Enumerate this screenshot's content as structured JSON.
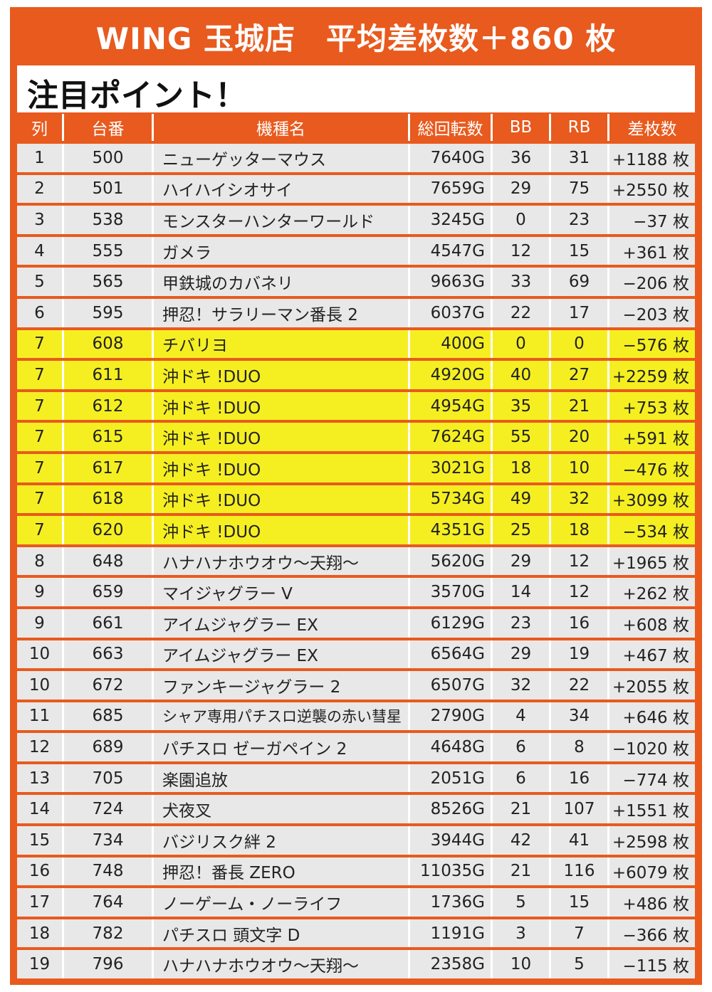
{
  "header": {
    "title": "WING 玉城店　平均差枚数＋860 枚",
    "subtitle": "注目ポイント！"
  },
  "table": {
    "columns": [
      "列",
      "台番",
      "機種名",
      "総回転数",
      "BB",
      "RB",
      "差枚数"
    ],
    "rows": [
      {
        "col": "1",
        "num": "500",
        "name": "ニューゲッターマウス",
        "spins": "7640G",
        "bb": "36",
        "rb": "31",
        "diff": "+1188 枚",
        "highlight": false
      },
      {
        "col": "2",
        "num": "501",
        "name": "ハイハイシオサイ",
        "spins": "7659G",
        "bb": "29",
        "rb": "75",
        "diff": "+2550 枚",
        "highlight": false
      },
      {
        "col": "3",
        "num": "538",
        "name": "モンスターハンターワールド",
        "spins": "3245G",
        "bb": "0",
        "rb": "23",
        "diff": "−37 枚",
        "highlight": false
      },
      {
        "col": "4",
        "num": "555",
        "name": "ガメラ",
        "spins": "4547G",
        "bb": "12",
        "rb": "15",
        "diff": "+361 枚",
        "highlight": false
      },
      {
        "col": "5",
        "num": "565",
        "name": "甲鉄城のカバネリ",
        "spins": "9663G",
        "bb": "33",
        "rb": "69",
        "diff": "−206 枚",
        "highlight": false
      },
      {
        "col": "6",
        "num": "595",
        "name": "押忍！サラリーマン番長 2",
        "spins": "6037G",
        "bb": "22",
        "rb": "17",
        "diff": "−203 枚",
        "highlight": false
      },
      {
        "col": "7",
        "num": "608",
        "name": "チバリヨ",
        "spins": "400G",
        "bb": "0",
        "rb": "0",
        "diff": "−576 枚",
        "highlight": true
      },
      {
        "col": "7",
        "num": "611",
        "name": "沖ドキ !DUO",
        "spins": "4920G",
        "bb": "40",
        "rb": "27",
        "diff": "+2259 枚",
        "highlight": true
      },
      {
        "col": "7",
        "num": "612",
        "name": "沖ドキ !DUO",
        "spins": "4954G",
        "bb": "35",
        "rb": "21",
        "diff": "+753 枚",
        "highlight": true
      },
      {
        "col": "7",
        "num": "615",
        "name": "沖ドキ !DUO",
        "spins": "7624G",
        "bb": "55",
        "rb": "20",
        "diff": "+591 枚",
        "highlight": true
      },
      {
        "col": "7",
        "num": "617",
        "name": "沖ドキ !DUO",
        "spins": "3021G",
        "bb": "18",
        "rb": "10",
        "diff": "−476 枚",
        "highlight": true
      },
      {
        "col": "7",
        "num": "618",
        "name": "沖ドキ !DUO",
        "spins": "5734G",
        "bb": "49",
        "rb": "32",
        "diff": "+3099 枚",
        "highlight": true
      },
      {
        "col": "7",
        "num": "620",
        "name": "沖ドキ !DUO",
        "spins": "4351G",
        "bb": "25",
        "rb": "18",
        "diff": "−534 枚",
        "highlight": true
      },
      {
        "col": "8",
        "num": "648",
        "name": "ハナハナホウオウ〜天翔〜",
        "spins": "5620G",
        "bb": "29",
        "rb": "12",
        "diff": "+1965 枚",
        "highlight": false
      },
      {
        "col": "9",
        "num": "659",
        "name": "マイジャグラー V",
        "spins": "3570G",
        "bb": "14",
        "rb": "12",
        "diff": "+262 枚",
        "highlight": false
      },
      {
        "col": "9",
        "num": "661",
        "name": "アイムジャグラー EX",
        "spins": "6129G",
        "bb": "23",
        "rb": "16",
        "diff": "+608 枚",
        "highlight": false
      },
      {
        "col": "10",
        "num": "663",
        "name": "アイムジャグラー EX",
        "spins": "6564G",
        "bb": "29",
        "rb": "19",
        "diff": "+467 枚",
        "highlight": false
      },
      {
        "col": "10",
        "num": "672",
        "name": "ファンキージャグラー 2",
        "spins": "6507G",
        "bb": "32",
        "rb": "22",
        "diff": "+2055 枚",
        "highlight": false
      },
      {
        "col": "11",
        "num": "685",
        "name": "シャア専用パチスロ逆襲の赤い彗星",
        "spins": "2790G",
        "bb": "4",
        "rb": "34",
        "diff": "+646 枚",
        "highlight": false
      },
      {
        "col": "12",
        "num": "689",
        "name": "パチスロ ゼーガペイン 2",
        "spins": "4648G",
        "bb": "6",
        "rb": "8",
        "diff": "−1020 枚",
        "highlight": false
      },
      {
        "col": "13",
        "num": "705",
        "name": "楽園追放",
        "spins": "2051G",
        "bb": "6",
        "rb": "16",
        "diff": "−774 枚",
        "highlight": false
      },
      {
        "col": "14",
        "num": "724",
        "name": "犬夜叉",
        "spins": "8526G",
        "bb": "21",
        "rb": "107",
        "diff": "+1551 枚",
        "highlight": false
      },
      {
        "col": "15",
        "num": "734",
        "name": "バジリスク絆 2",
        "spins": "3944G",
        "bb": "42",
        "rb": "41",
        "diff": "+2598 枚",
        "highlight": false
      },
      {
        "col": "16",
        "num": "748",
        "name": "押忍！番長 ZERO",
        "spins": "11035G",
        "bb": "21",
        "rb": "116",
        "diff": "+6079 枚",
        "highlight": false
      },
      {
        "col": "17",
        "num": "764",
        "name": "ノーゲーム・ノーライフ",
        "spins": "1736G",
        "bb": "5",
        "rb": "15",
        "diff": "+486 枚",
        "highlight": false
      },
      {
        "col": "18",
        "num": "782",
        "name": "パチスロ 頭文字 D",
        "spins": "1191G",
        "bb": "3",
        "rb": "7",
        "diff": "−366 枚",
        "highlight": false
      },
      {
        "col": "19",
        "num": "796",
        "name": "ハナハナホウオウ〜天翔〜",
        "spins": "2358G",
        "bb": "10",
        "rb": "5",
        "diff": "−115 枚",
        "highlight": false
      }
    ]
  },
  "colors": {
    "brand_orange": "#e85a1e",
    "highlight_yellow": "#f5ef22",
    "row_gray": "#e8e8e8"
  }
}
